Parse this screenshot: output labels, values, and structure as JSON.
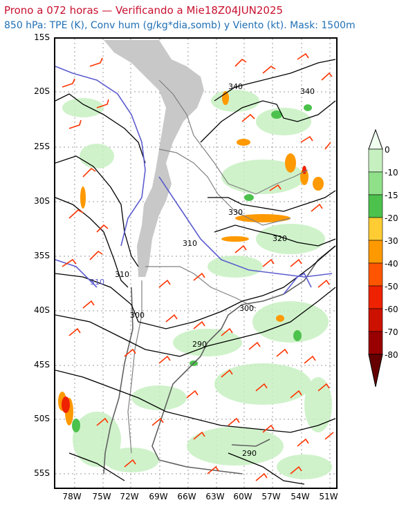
{
  "header": {
    "title": "Prono a 072 horas — Verificando a Mie18Z04JUN2025",
    "subtitle": "850 hPa: TPE (K), Conv hum (g/kg*dia,somb) y Viento (kt). Mask: 1500m"
  },
  "axes": {
    "lat_labels": [
      "15S",
      "20S",
      "25S",
      "30S",
      "35S",
      "40S",
      "45S",
      "50S",
      "55S"
    ],
    "lon_labels": [
      "78W",
      "75W",
      "72W",
      "69W",
      "66W",
      "63W",
      "60W",
      "57W",
      "54W",
      "51W"
    ]
  },
  "contour_labels": [
    {
      "text": "340"
    },
    {
      "text": "340"
    },
    {
      "text": "330"
    },
    {
      "text": "320"
    },
    {
      "text": "310"
    },
    {
      "text": "310"
    },
    {
      "text": "310"
    },
    {
      "text": "300"
    },
    {
      "text": "300"
    },
    {
      "text": "290"
    },
    {
      "text": "290"
    }
  ],
  "colorbar": {
    "labels": [
      "0",
      "-10",
      "-15",
      "-20",
      "-30",
      "-40",
      "-50",
      "-60",
      "-70",
      "-80"
    ],
    "colors": [
      "#f0fff0",
      "#c7f0c1",
      "#90e08a",
      "#4cc24c",
      "#ffcc33",
      "#ff9900",
      "#ff5500",
      "#ee2200",
      "#cc1100",
      "#990000",
      "#660000"
    ]
  },
  "colors": {
    "title": "#c8102e",
    "subtitle": "#1f6fb5",
    "mask": "#c8c8c8",
    "contour": "#000000",
    "contour_highlight": "#5c5ccf",
    "wind_barb": "#ff3300",
    "border": "#808080"
  }
}
